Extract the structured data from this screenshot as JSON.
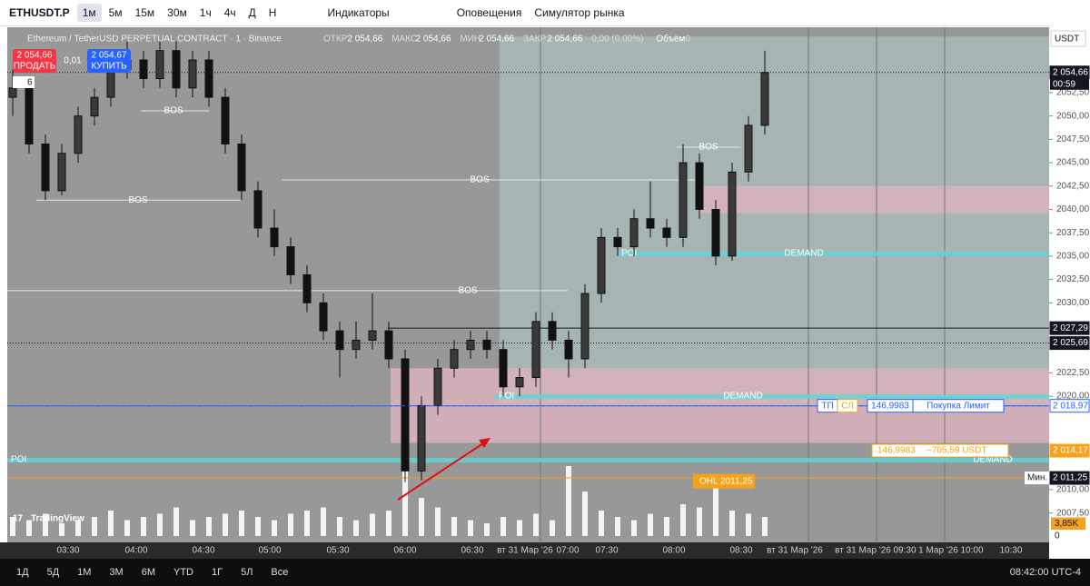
{
  "toolbar": {
    "symbol": "ETHUSDT.P",
    "intervals": [
      "1м",
      "5м",
      "15м",
      "30м",
      "1ч",
      "4ч",
      "Д",
      "Н"
    ],
    "indicators": "Индикаторы",
    "alerts": "Оповещения",
    "simulator": "Симулятор рынка"
  },
  "legend": {
    "title": "Ethereum / TetherUSD PERPETUAL CONTRACT · 1 · Binance",
    "fields": [
      "ОТКР",
      "2 054,66",
      "МАКС",
      "2 054,66",
      "МИН",
      "2 054,66",
      "ЗАКР",
      "2 054,66",
      "0,00 (0,00%)",
      "Объём",
      "0"
    ]
  },
  "trade": {
    "sell_price": "2 054,66",
    "sell": "ПРОДАТЬ",
    "spread": "0,01",
    "buy_price": "2 054,67",
    "buy": "КУПИТЬ",
    "lots": "6"
  },
  "chart_data": {
    "type": "candlestick",
    "currency": "USDT",
    "candles": [
      [
        2052,
        2055,
        2050,
        2053
      ],
      [
        2053,
        2054,
        2046,
        2047
      ],
      [
        2047,
        2048,
        2041,
        2042
      ],
      [
        2042,
        2047,
        2041.5,
        2046
      ],
      [
        2046,
        2051,
        2045,
        2050
      ],
      [
        2050,
        2053,
        2049,
        2052
      ],
      [
        2052,
        2056,
        2051,
        2055
      ],
      [
        2055,
        2058,
        2054,
        2056
      ],
      [
        2056,
        2057,
        2053,
        2054
      ],
      [
        2054,
        2058,
        2053,
        2057
      ],
      [
        2057,
        2058,
        2052,
        2053
      ],
      [
        2053,
        2057,
        2052,
        2056
      ],
      [
        2056,
        2057,
        2051,
        2052
      ],
      [
        2052,
        2053,
        2046,
        2047
      ],
      [
        2047,
        2048,
        2041,
        2042
      ],
      [
        2042,
        2043,
        2037,
        2038
      ],
      [
        2038,
        2040,
        2035,
        2036
      ],
      [
        2036,
        2037,
        2032,
        2033
      ],
      [
        2033,
        2034,
        2029,
        2030
      ],
      [
        2030,
        2031,
        2026,
        2027
      ],
      [
        2027,
        2028,
        2022,
        2025
      ],
      [
        2025,
        2028,
        2024,
        2026
      ],
      [
        2026,
        2031,
        2025,
        2027
      ],
      [
        2027,
        2028,
        2023,
        2024
      ],
      [
        2024,
        2025,
        2010.8,
        2012
      ],
      [
        2012,
        2020,
        2011,
        2019
      ],
      [
        2019,
        2024,
        2018,
        2023
      ],
      [
        2023,
        2026,
        2022,
        2025
      ],
      [
        2025,
        2027,
        2024,
        2026
      ],
      [
        2026,
        2027,
        2024,
        2025
      ],
      [
        2025,
        2026,
        2020,
        2021
      ],
      [
        2021,
        2023,
        2020,
        2022
      ],
      [
        2022,
        2029,
        2021,
        2028
      ],
      [
        2028,
        2029,
        2025,
        2026
      ],
      [
        2026,
        2027,
        2022,
        2024
      ],
      [
        2024,
        2032,
        2023,
        2031
      ],
      [
        2031,
        2038,
        2030,
        2037
      ],
      [
        2037,
        2038,
        2035,
        2036
      ],
      [
        2036,
        2040,
        2035,
        2039
      ],
      [
        2039,
        2043,
        2037,
        2038
      ],
      [
        2038,
        2039,
        2036,
        2037
      ],
      [
        2037,
        2047,
        2036,
        2045
      ],
      [
        2045,
        2046,
        2039,
        2040
      ],
      [
        2040,
        2041,
        2034,
        2035
      ],
      [
        2035,
        2045,
        2034.5,
        2044
      ],
      [
        2044,
        2050,
        2043,
        2049
      ],
      [
        2049,
        2057,
        2048,
        2054.66
      ]
    ],
    "volume": [
      6,
      5,
      7,
      4,
      5,
      6,
      8,
      5,
      6,
      7,
      9,
      5,
      6,
      7,
      8,
      6,
      5,
      7,
      8,
      9,
      6,
      5,
      7,
      8,
      30,
      12,
      9,
      6,
      5,
      4,
      6,
      5,
      7,
      5,
      22,
      14,
      8,
      6,
      5,
      7,
      6,
      10,
      9,
      18,
      8,
      7,
      6
    ],
    "vlim": [
      0,
      40
    ],
    "volume_ticks": [
      {
        "value": 3.85,
        "label": "3,85K"
      },
      0
    ],
    "ylim": [
      2004.35,
      2059.5
    ],
    "yticks": [
      {
        "value": 2052.5,
        "label": "2052,50"
      },
      {
        "value": 2050,
        "label": "2050,00"
      },
      {
        "value": 2047.5,
        "label": "2047,50"
      },
      {
        "value": 2045,
        "label": "2045,00"
      },
      {
        "value": 2042.5,
        "label": "2042,50"
      },
      {
        "value": 2040,
        "label": "2040,00"
      },
      {
        "value": 2037.5,
        "label": "2037,50"
      },
      {
        "value": 2035,
        "label": "2035,00"
      },
      {
        "value": 2032.5,
        "label": "2032,50"
      },
      {
        "value": 2030,
        "label": "2030,00"
      },
      {
        "value": 2022.5,
        "label": "2022,50"
      },
      {
        "value": 2020,
        "label": "2020,00"
      },
      {
        "value": 2010,
        "label": "2010,00"
      },
      {
        "value": 2007.5,
        "label": "2007,50"
      }
    ],
    "levels": [
      {
        "value": 2054.66,
        "label": "2 054,66",
        "color": "#131722"
      },
      {
        "value": 2027.29,
        "label": "2 027,29",
        "color": "#131722"
      },
      {
        "value": 2025.69,
        "label": "2 025,69",
        "color": "#131722"
      },
      {
        "value": 2018.97,
        "label": "2 018,97",
        "color": "#2962ff"
      },
      {
        "value": 2014.17,
        "label": "2 014,17",
        "color": "#f7a21b"
      },
      {
        "value": 2011.25,
        "label": "2 011,25",
        "color": "#131722"
      }
    ],
    "countdown": "00:59",
    "min_label": "Мин.",
    "zones": [
      {
        "top": 2058.5,
        "bottom": 2018.97,
        "color": "#a9b9b9"
      },
      {
        "top": 2023,
        "bottom": 2015,
        "color": "#d9b3bd"
      },
      {
        "top": 2042.5,
        "bottom": 2039.6,
        "color": "#d9b3bd"
      }
    ],
    "bos": [
      {
        "label": "BOS",
        "price": 2050.55
      },
      {
        "label": "BOS",
        "price": 2041
      },
      {
        "label": "BOS",
        "price": 2043.16
      },
      {
        "label": "BOS",
        "price": 2046.66
      },
      {
        "label": "BOS",
        "price": 2031.3
      }
    ],
    "demand": [
      {
        "poi": "POI",
        "label": "DEMAND",
        "price": 2035.3
      },
      {
        "poi": "POI",
        "label": "DEMAND",
        "price": 2020
      },
      {
        "poi": "POI",
        "label": "DEMAND",
        "price": 2013.2
      }
    ],
    "order": {
      "tp": "ТП",
      "sl": "СЛ",
      "qty": "146,9983",
      "kind": "Покупка Лимит",
      "pnl_qty": "146,9983",
      "pnl": "−705,59 USDT"
    },
    "tooltip": "OHL 2011,25",
    "time_labels": [
      "03:30",
      "04:00",
      "04:30",
      "05:00",
      "05:30",
      "06:00",
      "06:30",
      "вт 31 Мар '26",
      "07:00",
      "07:30",
      "08:00",
      "08:30",
      "вт 31 Мар '26",
      "вт 31 Мар '26",
      "09:30",
      "1 Мар '26",
      "10:00",
      "10:30"
    ]
  },
  "bottom_bar": {
    "ranges": [
      "1Д",
      "5Д",
      "1М",
      "3М",
      "6М",
      "YTD",
      "1Г",
      "5Л",
      "Все"
    ],
    "clock": "08:42:00 UTC-4"
  },
  "brand": "TradingView"
}
